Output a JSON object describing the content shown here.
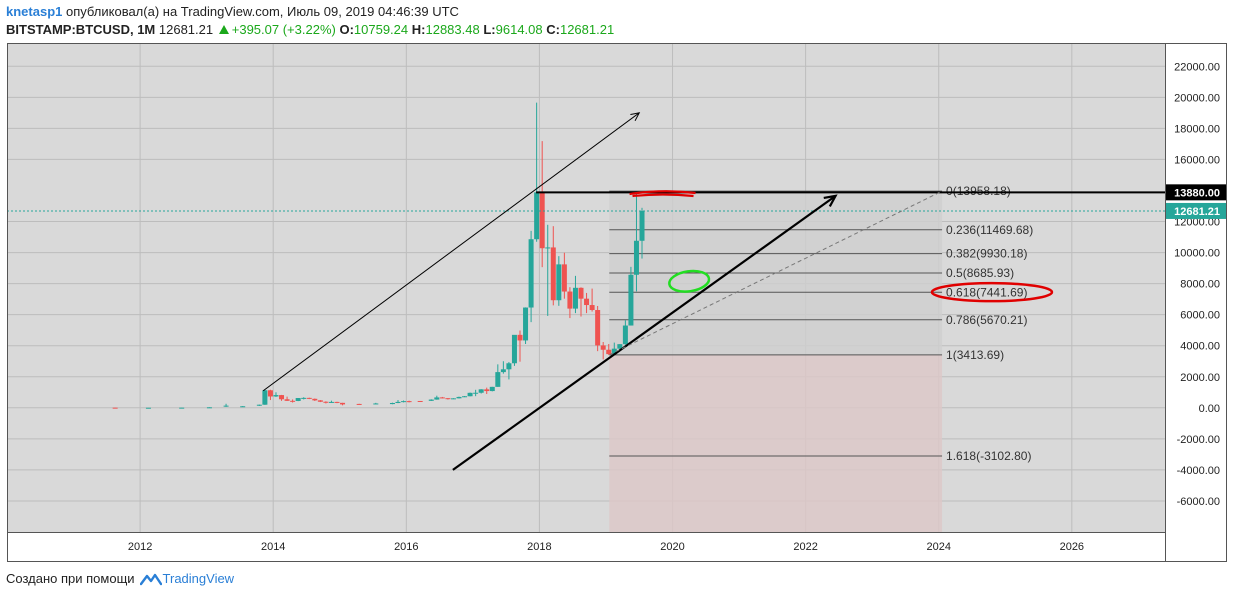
{
  "header": {
    "author": "knetasp1",
    "published_text": "опубликовал(а) на TradingView.com, Июль 09, 2019 04:46:39 UTC",
    "symbol": "BITSTAMP:BTCUSD, 1M",
    "last": "12681.21",
    "change": "+395.07 (+3.22%)",
    "o_label": "O:",
    "o_value": "10759.24",
    "h_label": "H:",
    "h_value": "12883.48",
    "l_label": "L:",
    "l_value": "9614.08",
    "c_label": "C:",
    "c_value": "12681.21"
  },
  "footer": {
    "created_text": "Создано при помощи",
    "brand": "TradingView"
  },
  "colors": {
    "up": "#26a69a",
    "down": "#ef5350",
    "plot_bg": "#d9d9d9",
    "fib_zone": "#cfcfcf",
    "fib_ext_zone": "#dcc8c8",
    "accent_link": "#2a7fd6",
    "price_tag_dark": "#000000",
    "price_tag_last": "#26a69a"
  },
  "chart_data": {
    "type": "candlestick",
    "title": "",
    "xlabel": "",
    "ylabel": "",
    "xlim": [
      2010.0,
      2027.4
    ],
    "ylim": [
      -8000,
      23500
    ],
    "x_ticks": [
      "2012",
      "2014",
      "2016",
      "2018",
      "2020",
      "2022",
      "2024",
      "2026"
    ],
    "y_ticks": [
      "22000.00",
      "20000.00",
      "18000.00",
      "16000.00",
      "12000.00",
      "10000.00",
      "8000.00",
      "6000.00",
      "4000.00",
      "2000.00",
      "0.00",
      "-2000.00",
      "-4000.00",
      "-6000.00"
    ],
    "price_tags": [
      {
        "label": "13880.00",
        "value": 13880,
        "style": "dark"
      },
      {
        "label": "12681.21",
        "value": 12681.21,
        "style": "last"
      }
    ],
    "candles": [
      {
        "t": "2011-08",
        "o": 10,
        "h": 15,
        "l": 5,
        "c": 5
      },
      {
        "t": "2012-02",
        "o": 5,
        "h": 7,
        "l": 4,
        "c": 5
      },
      {
        "t": "2012-08",
        "o": 6,
        "h": 14,
        "l": 5,
        "c": 10
      },
      {
        "t": "2013-01",
        "o": 13,
        "h": 35,
        "l": 13,
        "c": 33
      },
      {
        "t": "2013-04",
        "o": 90,
        "h": 260,
        "l": 60,
        "c": 140
      },
      {
        "t": "2013-07",
        "o": 90,
        "h": 110,
        "l": 65,
        "c": 100
      },
      {
        "t": "2013-10",
        "o": 140,
        "h": 210,
        "l": 120,
        "c": 200
      },
      {
        "t": "2013-11",
        "o": 200,
        "h": 1160,
        "l": 190,
        "c": 1130
      },
      {
        "t": "2013-12",
        "o": 1130,
        "h": 1165,
        "l": 500,
        "c": 730
      },
      {
        "t": "2014-01",
        "o": 730,
        "h": 1000,
        "l": 700,
        "c": 820
      },
      {
        "t": "2014-02",
        "o": 820,
        "h": 830,
        "l": 450,
        "c": 550
      },
      {
        "t": "2014-03",
        "o": 550,
        "h": 720,
        "l": 440,
        "c": 450
      },
      {
        "t": "2014-04",
        "o": 450,
        "h": 540,
        "l": 340,
        "c": 440
      },
      {
        "t": "2014-05",
        "o": 440,
        "h": 630,
        "l": 430,
        "c": 630
      },
      {
        "t": "2014-06",
        "o": 630,
        "h": 680,
        "l": 540,
        "c": 640
      },
      {
        "t": "2014-07",
        "o": 640,
        "h": 650,
        "l": 560,
        "c": 580
      },
      {
        "t": "2014-08",
        "o": 580,
        "h": 600,
        "l": 440,
        "c": 480
      },
      {
        "t": "2014-09",
        "o": 480,
        "h": 500,
        "l": 370,
        "c": 390
      },
      {
        "t": "2014-10",
        "o": 390,
        "h": 420,
        "l": 280,
        "c": 340
      },
      {
        "t": "2014-11",
        "o": 340,
        "h": 460,
        "l": 320,
        "c": 380
      },
      {
        "t": "2014-12",
        "o": 380,
        "h": 390,
        "l": 300,
        "c": 320
      },
      {
        "t": "2015-01",
        "o": 320,
        "h": 320,
        "l": 160,
        "c": 220
      },
      {
        "t": "2015-04",
        "o": 250,
        "h": 260,
        "l": 210,
        "c": 240
      },
      {
        "t": "2015-07",
        "o": 260,
        "h": 320,
        "l": 250,
        "c": 280
      },
      {
        "t": "2015-10",
        "o": 240,
        "h": 330,
        "l": 230,
        "c": 310
      },
      {
        "t": "2015-11",
        "o": 310,
        "h": 500,
        "l": 300,
        "c": 380
      },
      {
        "t": "2015-12",
        "o": 380,
        "h": 470,
        "l": 350,
        "c": 430
      },
      {
        "t": "2016-01",
        "o": 430,
        "h": 460,
        "l": 350,
        "c": 370
      },
      {
        "t": "2016-03",
        "o": 440,
        "h": 440,
        "l": 400,
        "c": 415
      },
      {
        "t": "2016-05",
        "o": 450,
        "h": 550,
        "l": 440,
        "c": 530
      },
      {
        "t": "2016-06",
        "o": 530,
        "h": 780,
        "l": 520,
        "c": 670
      },
      {
        "t": "2016-07",
        "o": 670,
        "h": 700,
        "l": 600,
        "c": 620
      },
      {
        "t": "2016-08",
        "o": 620,
        "h": 630,
        "l": 530,
        "c": 575
      },
      {
        "t": "2016-09",
        "o": 575,
        "h": 620,
        "l": 560,
        "c": 610
      },
      {
        "t": "2016-10",
        "o": 610,
        "h": 720,
        "l": 600,
        "c": 700
      },
      {
        "t": "2016-11",
        "o": 700,
        "h": 760,
        "l": 690,
        "c": 745
      },
      {
        "t": "2016-12",
        "o": 745,
        "h": 980,
        "l": 740,
        "c": 965
      },
      {
        "t": "2017-01",
        "o": 965,
        "h": 1160,
        "l": 750,
        "c": 970
      },
      {
        "t": "2017-02",
        "o": 970,
        "h": 1200,
        "l": 920,
        "c": 1190
      },
      {
        "t": "2017-03",
        "o": 1190,
        "h": 1300,
        "l": 890,
        "c": 1080
      },
      {
        "t": "2017-04",
        "o": 1080,
        "h": 1350,
        "l": 1060,
        "c": 1350
      },
      {
        "t": "2017-05",
        "o": 1350,
        "h": 2800,
        "l": 1350,
        "c": 2300
      },
      {
        "t": "2017-06",
        "o": 2300,
        "h": 3000,
        "l": 2200,
        "c": 2480
      },
      {
        "t": "2017-07",
        "o": 2480,
        "h": 2950,
        "l": 1830,
        "c": 2870
      },
      {
        "t": "2017-08",
        "o": 2870,
        "h": 4480,
        "l": 2700,
        "c": 4700
      },
      {
        "t": "2017-09",
        "o": 4700,
        "h": 4980,
        "l": 2970,
        "c": 4340
      },
      {
        "t": "2017-10",
        "o": 4340,
        "h": 6470,
        "l": 4110,
        "c": 6460
      },
      {
        "t": "2017-11",
        "o": 6460,
        "h": 11400,
        "l": 5520,
        "c": 10860
      },
      {
        "t": "2017-12",
        "o": 10860,
        "h": 19660,
        "l": 10700,
        "c": 13880
      },
      {
        "t": "2018-01",
        "o": 13880,
        "h": 17180,
        "l": 9060,
        "c": 10280
      },
      {
        "t": "2018-02",
        "o": 10280,
        "h": 11790,
        "l": 5920,
        "c": 10330
      },
      {
        "t": "2018-03",
        "o": 10330,
        "h": 11700,
        "l": 6600,
        "c": 6930
      },
      {
        "t": "2018-04",
        "o": 6930,
        "h": 9770,
        "l": 6570,
        "c": 9240
      },
      {
        "t": "2018-05",
        "o": 9240,
        "h": 9990,
        "l": 7030,
        "c": 7490
      },
      {
        "t": "2018-06",
        "o": 7490,
        "h": 7770,
        "l": 5780,
        "c": 6390
      },
      {
        "t": "2018-07",
        "o": 6390,
        "h": 8500,
        "l": 6100,
        "c": 7730
      },
      {
        "t": "2018-08",
        "o": 7730,
        "h": 7760,
        "l": 5880,
        "c": 7030
      },
      {
        "t": "2018-09",
        "o": 7030,
        "h": 7400,
        "l": 6100,
        "c": 6620
      },
      {
        "t": "2018-10",
        "o": 6620,
        "h": 7680,
        "l": 6200,
        "c": 6300
      },
      {
        "t": "2018-11",
        "o": 6300,
        "h": 6560,
        "l": 3650,
        "c": 4020
      },
      {
        "t": "2018-12",
        "o": 4020,
        "h": 4240,
        "l": 3120,
        "c": 3740
      },
      {
        "t": "2019-01",
        "o": 3740,
        "h": 4110,
        "l": 3400,
        "c": 3460
      },
      {
        "t": "2019-02",
        "o": 3460,
        "h": 4200,
        "l": 3380,
        "c": 3810
      },
      {
        "t": "2019-03",
        "o": 3810,
        "h": 4100,
        "l": 3730,
        "c": 4100
      },
      {
        "t": "2019-04",
        "o": 4100,
        "h": 5640,
        "l": 4060,
        "c": 5300
      },
      {
        "t": "2019-05",
        "o": 5300,
        "h": 9080,
        "l": 5300,
        "c": 8570
      },
      {
        "t": "2019-06",
        "o": 8570,
        "h": 13880,
        "l": 7500,
        "c": 10760
      },
      {
        "t": "2019-07",
        "o": 10759.24,
        "h": 12883.48,
        "l": 9614.08,
        "c": 12681.21
      }
    ],
    "fib_levels": [
      {
        "label": "0(13958.18)",
        "value": 13958.18
      },
      {
        "label": "0.236(11469.68)",
        "value": 11469.68
      },
      {
        "label": "0.382(9930.18)",
        "value": 9930.18
      },
      {
        "label": "0.5(8685.93)",
        "value": 8685.93
      },
      {
        "label": "0.618(7441.69)",
        "value": 7441.69
      },
      {
        "label": "0.786(5670.21)",
        "value": 5670.21
      },
      {
        "label": "1(3413.69)",
        "value": 3413.69
      },
      {
        "label": "1.618(-3102.80)",
        "value": -3102.8
      }
    ],
    "fib_range": {
      "start": 2019.05,
      "end": 2024.05
    },
    "horizontal_line": {
      "value": 13880,
      "from": 2017.95
    },
    "trendlines": [
      {
        "from": [
          2013.85,
          1100
        ],
        "to": [
          2019.5,
          19000
        ],
        "style": "thin-arrow"
      },
      {
        "from": [
          2016.7,
          -4000
        ],
        "to": [
          2022.45,
          13650
        ],
        "style": "thick-arrow"
      },
      {
        "from": [
          2019.05,
          3413.69
        ],
        "to": [
          2024.05,
          13958.18
        ],
        "style": "dashed"
      }
    ],
    "annotations": [
      {
        "type": "red-scribble",
        "x": 2019.85,
        "y": 13900
      },
      {
        "type": "green-ellipse",
        "x": 2020.25,
        "y": 8150
      },
      {
        "type": "red-ellipse",
        "x": 2024.8,
        "y": 7450
      }
    ],
    "grid": true
  }
}
